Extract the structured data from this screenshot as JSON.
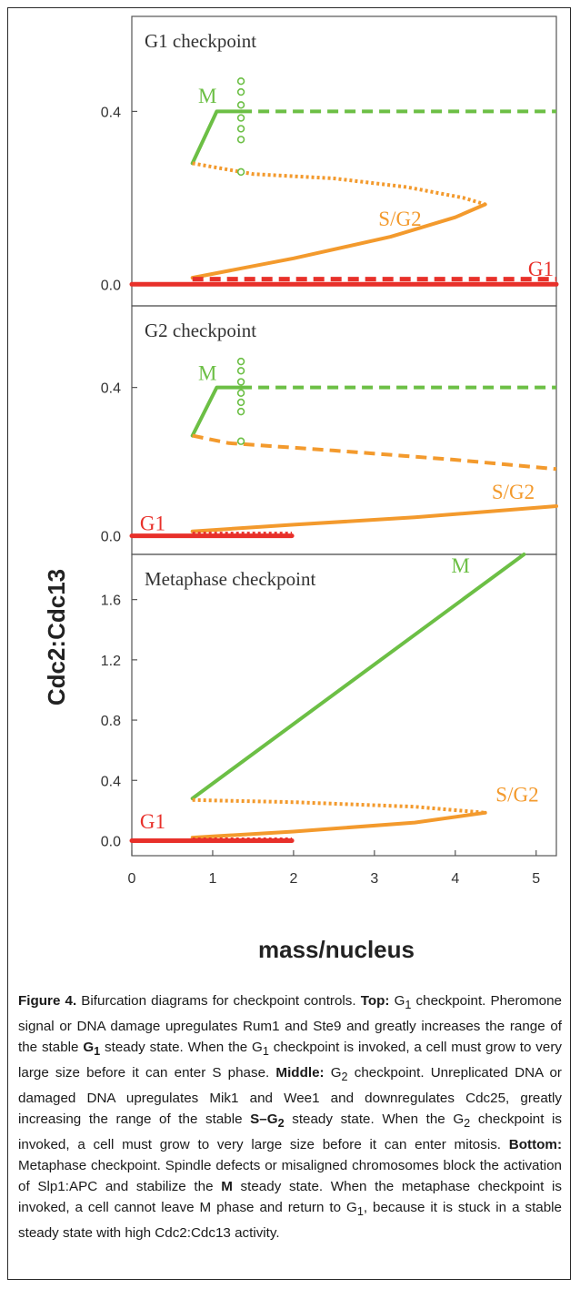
{
  "colors": {
    "M": "#6cbf45",
    "SG2": "#f39a2d",
    "G1": "#e8302a",
    "axis": "#555555"
  },
  "chart_data": [
    {
      "type": "line",
      "panel_title": "G1 checkpoint",
      "xlim": [
        0,
        5.25
      ],
      "ylim": [
        -0.05,
        0.62
      ],
      "yticks": [
        0.0,
        0.4
      ],
      "ytick_labels": [
        "0.0",
        "0.4"
      ],
      "labels": [
        {
          "series": "M",
          "text": "M",
          "x": 0.82,
          "y": 0.42
        },
        {
          "series": "SG2",
          "text": "S/G2",
          "x": 3.05,
          "y": 0.135
        },
        {
          "series": "G1",
          "text": "G1",
          "x": 4.9,
          "y": 0.02
        }
      ],
      "series": [
        {
          "name": "M",
          "style": "solid",
          "points": [
            [
              0.75,
              0.28
            ],
            [
              1.05,
              0.4
            ],
            [
              1.35,
              0.4
            ]
          ]
        },
        {
          "name": "M",
          "style": "dashed",
          "points": [
            [
              1.35,
              0.4
            ],
            [
              5.25,
              0.4
            ]
          ]
        },
        {
          "name": "SG2",
          "style": "dotted",
          "points": [
            [
              0.75,
              0.28
            ],
            [
              1.5,
              0.255
            ],
            [
              2.5,
              0.245
            ],
            [
              3.4,
              0.225
            ],
            [
              4.1,
              0.2
            ],
            [
              4.37,
              0.185
            ]
          ]
        },
        {
          "name": "SG2",
          "style": "solid",
          "points": [
            [
              0.75,
              0.015
            ],
            [
              2.0,
              0.06
            ],
            [
              3.2,
              0.11
            ],
            [
              4.0,
              0.155
            ],
            [
              4.37,
              0.185
            ]
          ]
        },
        {
          "name": "G1",
          "style": "solid",
          "points": [
            [
              0.0,
              0.0
            ],
            [
              5.25,
              0.0
            ]
          ]
        },
        {
          "name": "G1",
          "style": "dashed",
          "points": [
            [
              0.75,
              0.012
            ],
            [
              5.25,
              0.012
            ]
          ]
        }
      ],
      "markers": {
        "series": "M",
        "x": 1.35,
        "y": [
          0.47,
          0.445,
          0.415,
          0.385,
          0.36,
          0.335,
          0.26
        ]
      }
    },
    {
      "type": "line",
      "panel_title": "G2 checkpoint",
      "xlim": [
        0,
        5.25
      ],
      "ylim": [
        -0.05,
        0.62
      ],
      "yticks": [
        0.0,
        0.4
      ],
      "ytick_labels": [
        "0.0",
        "0.4"
      ],
      "labels": [
        {
          "series": "M",
          "text": "M",
          "x": 0.82,
          "y": 0.42
        },
        {
          "series": "SG2",
          "text": "S/G2",
          "x": 4.45,
          "y": 0.1
        },
        {
          "series": "G1",
          "text": "G1",
          "x": 0.1,
          "y": 0.015
        }
      ],
      "series": [
        {
          "name": "M",
          "style": "solid",
          "points": [
            [
              0.75,
              0.27
            ],
            [
              1.05,
              0.4
            ],
            [
              1.35,
              0.4
            ]
          ]
        },
        {
          "name": "M",
          "style": "dashed",
          "points": [
            [
              1.35,
              0.4
            ],
            [
              5.25,
              0.4
            ]
          ]
        },
        {
          "name": "SG2",
          "style": "dashed",
          "points": [
            [
              0.75,
              0.27
            ],
            [
              1.2,
              0.25
            ],
            [
              2.5,
              0.23
            ],
            [
              4.0,
              0.205
            ],
            [
              5.25,
              0.18
            ]
          ]
        },
        {
          "name": "SG2",
          "style": "solid",
          "points": [
            [
              0.75,
              0.012
            ],
            [
              2.0,
              0.03
            ],
            [
              3.5,
              0.05
            ],
            [
              5.25,
              0.08
            ]
          ]
        },
        {
          "name": "G1",
          "style": "solid",
          "points": [
            [
              0.0,
              0.0
            ],
            [
              1.98,
              0.0
            ]
          ]
        },
        {
          "name": "G1",
          "style": "dotted",
          "points": [
            [
              0.75,
              0.005
            ],
            [
              1.98,
              0.005
            ]
          ]
        }
      ],
      "markers": {
        "series": "M",
        "x": 1.35,
        "y": [
          0.47,
          0.445,
          0.415,
          0.385,
          0.36,
          0.335,
          0.255
        ]
      }
    },
    {
      "type": "line",
      "panel_title": "Metaphase checkpoint",
      "xlim": [
        0,
        5.25
      ],
      "ylim": [
        -0.1,
        1.9
      ],
      "yticks": [
        0.0,
        0.4,
        0.8,
        1.2,
        1.6
      ],
      "ytick_labels": [
        "0.0",
        "0.4",
        "0.8",
        "1.2",
        "1.6"
      ],
      "xticks": [
        0,
        1,
        2,
        3,
        4,
        5
      ],
      "xtick_labels": [
        "0",
        "1",
        "2",
        "3",
        "4",
        "5"
      ],
      "labels": [
        {
          "series": "M",
          "text": "M",
          "x": 3.95,
          "y": 1.78
        },
        {
          "series": "SG2",
          "text": "S/G2",
          "x": 4.5,
          "y": 0.26
        },
        {
          "series": "G1",
          "text": "G1",
          "x": 0.1,
          "y": 0.08
        }
      ],
      "series": [
        {
          "name": "M",
          "style": "solid",
          "points": [
            [
              0.75,
              0.28
            ],
            [
              4.85,
              1.9
            ]
          ]
        },
        {
          "name": "SG2",
          "style": "dotted",
          "points": [
            [
              0.75,
              0.27
            ],
            [
              2.0,
              0.255
            ],
            [
              3.5,
              0.225
            ],
            [
              4.37,
              0.185
            ]
          ]
        },
        {
          "name": "SG2",
          "style": "solid",
          "points": [
            [
              0.75,
              0.02
            ],
            [
              2.0,
              0.06
            ],
            [
              3.5,
              0.12
            ],
            [
              4.37,
              0.185
            ]
          ]
        },
        {
          "name": "G1",
          "style": "solid",
          "points": [
            [
              0.0,
              0.0
            ],
            [
              1.98,
              0.0
            ]
          ]
        },
        {
          "name": "G1",
          "style": "dotted",
          "points": [
            [
              0.75,
              0.006
            ],
            [
              1.98,
              0.006
            ]
          ]
        }
      ]
    }
  ],
  "axes": {
    "ylabel": "Cdc2:Cdc13",
    "xlabel": "mass/nucleus"
  },
  "caption": {
    "figure_label": "Figure 4.",
    "intro": " Bifurcation diagrams for checkpoint controls. ",
    "top_label": "Top:",
    "top_p1": " G",
    "top_sub1": "1",
    "top_p2": " checkpoint. Pheromone signal or DNA damage up­regulates Rum1 and Ste9 and greatly increases the range of the stable ",
    "top_bold": "G",
    "top_bold_sub": "1",
    "top_p3": " steady state. When the G",
    "top_sub2": "1",
    "top_p4": " checkpoint is invoked, a cell must grow to very large size before it can enter S phase. ",
    "middle_label": "Middle:",
    "mid_p1": " G",
    "mid_sub1": "2",
    "mid_p2": " checkpoint. Unreplicated DNA or damaged DNA upregulates Mik1 and Wee1 and downregulates Cdc25, greatly increasing the range of the stable ",
    "mid_bold": "S–G",
    "mid_bold_sub": "2",
    "mid_p3": " steady state. When the G",
    "mid_sub2": "2",
    "mid_p4": " checkpoint is invoked, a cell must grow to very large size before it can enter mitosis. ",
    "bottom_label": "Bottom:",
    "bot_p1": " Metaphase checkpoint. Spindle defects or misaligned chromosomes block the activa­tion of Slp1:APC and stabilize the ",
    "bot_bold": "M",
    "bot_p2": " steady state. When the metaphase checkpoint is invoked, a cell cannot leave M phase and return to G",
    "bot_sub": "1",
    "bot_p3": ", because it is stuck in a stable steady state with high Cdc2:Cdc13 activity."
  }
}
